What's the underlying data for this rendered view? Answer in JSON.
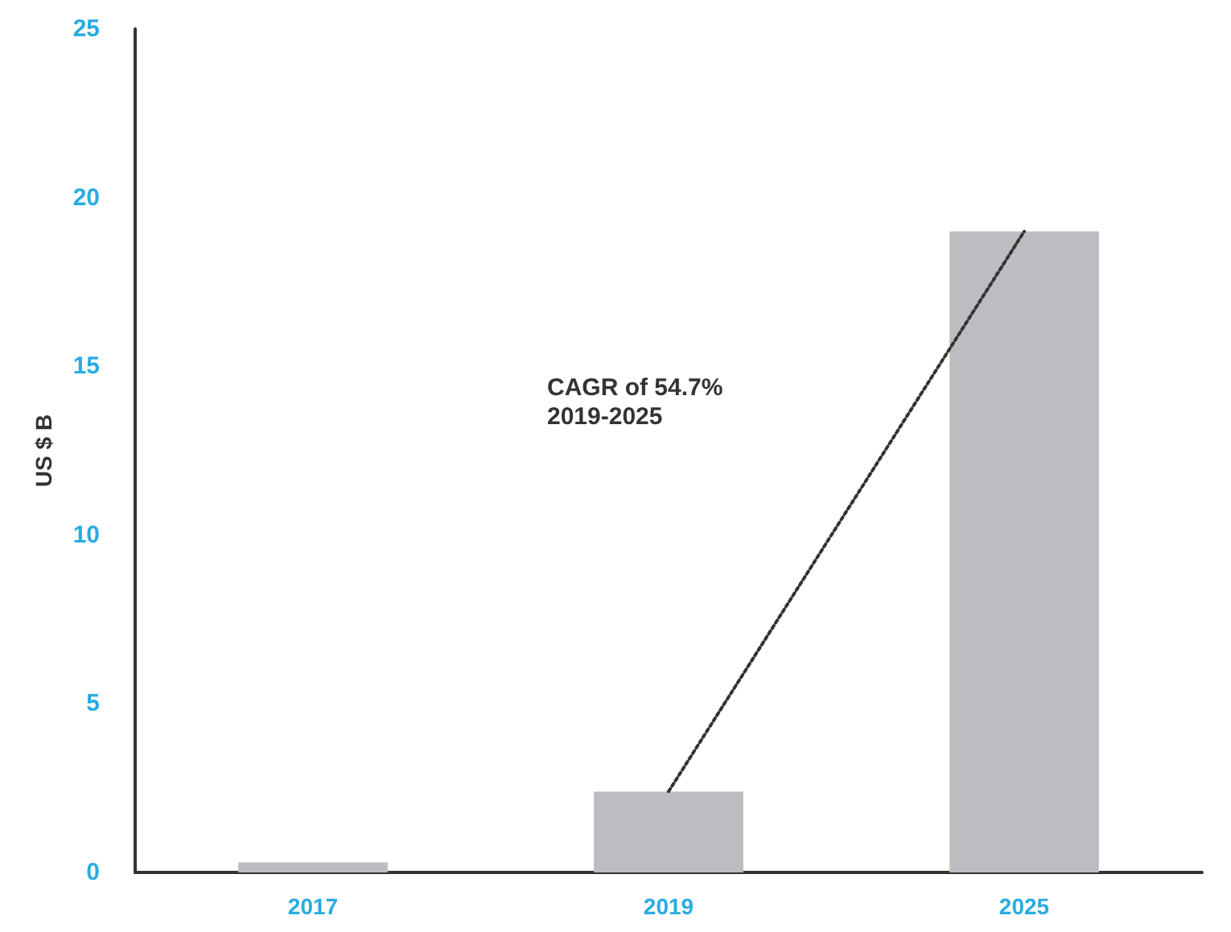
{
  "chart_data": {
    "type": "bar",
    "ylabel": "US $ B",
    "categories": [
      "2017",
      "2019",
      "2025"
    ],
    "series": [
      {
        "color": "#bcbdc0",
        "values": [
          0.3,
          2.4,
          19.0
        ]
      },
      {
        "type": "line",
        "color": "#333333",
        "line_style": "dotted",
        "marker": "none",
        "values": [
          null,
          2.4,
          19.0
        ]
      }
    ],
    "ylim": [
      0,
      25
    ],
    "yticks": [
      0,
      5,
      10,
      15,
      20,
      25
    ],
    "grid": false,
    "annotations": [
      "CAGR of 54.7%\n2019-2025"
    ]
  }
}
